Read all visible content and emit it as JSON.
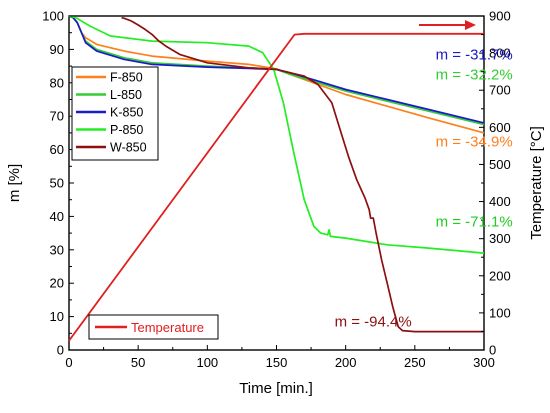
{
  "chart_data": {
    "type": "line",
    "xlabel": "Time [min.]",
    "ylabel": "m [%]",
    "y2label": "Temperature [°C]",
    "xlim": [
      0,
      300
    ],
    "ylim": [
      0,
      100
    ],
    "y2lim": [
      0,
      900
    ],
    "xticks": [
      0,
      50,
      100,
      150,
      200,
      250,
      300
    ],
    "yticks": [
      0,
      10,
      20,
      30,
      40,
      50,
      60,
      70,
      80,
      90,
      100
    ],
    "y2ticks": [
      0,
      100,
      200,
      300,
      400,
      500,
      600,
      700,
      800,
      900
    ],
    "grid": false,
    "legend_position": "upper-left",
    "series": [
      {
        "name": "F-850",
        "color": "#ff7f1e",
        "axis": "left",
        "points": [
          [
            0,
            100
          ],
          [
            3,
            99.5
          ],
          [
            6,
            98
          ],
          [
            9,
            95
          ],
          [
            12,
            93.5
          ],
          [
            20,
            91.5
          ],
          [
            40,
            89.5
          ],
          [
            60,
            88
          ],
          [
            100,
            86.5
          ],
          [
            130,
            85.5
          ],
          [
            150,
            84.2
          ],
          [
            160,
            82.5
          ],
          [
            180,
            79.5
          ],
          [
            200,
            76.5
          ],
          [
            230,
            73
          ],
          [
            260,
            69.5
          ],
          [
            300,
            65
          ]
        ]
      },
      {
        "name": "L-850",
        "color": "#33cc33",
        "axis": "left",
        "points": [
          [
            0,
            100
          ],
          [
            3,
            99.5
          ],
          [
            6,
            98
          ],
          [
            9,
            95
          ],
          [
            12,
            92.5
          ],
          [
            20,
            90
          ],
          [
            40,
            87.5
          ],
          [
            60,
            86
          ],
          [
            100,
            85
          ],
          [
            130,
            84.5
          ],
          [
            150,
            84
          ],
          [
            160,
            82.5
          ],
          [
            180,
            80
          ],
          [
            200,
            77.5
          ],
          [
            230,
            74.5
          ],
          [
            260,
            71.5
          ],
          [
            300,
            67.5
          ]
        ]
      },
      {
        "name": "K-850",
        "color": "#1a1acc",
        "axis": "left",
        "points": [
          [
            0,
            100
          ],
          [
            3,
            99.5
          ],
          [
            6,
            98
          ],
          [
            9,
            95
          ],
          [
            12,
            92
          ],
          [
            20,
            89.5
          ],
          [
            40,
            87
          ],
          [
            60,
            85.5
          ],
          [
            100,
            84.7
          ],
          [
            130,
            84.3
          ],
          [
            150,
            84
          ],
          [
            160,
            83
          ],
          [
            180,
            80.5
          ],
          [
            200,
            78
          ],
          [
            230,
            75
          ],
          [
            260,
            72
          ],
          [
            300,
            68
          ]
        ]
      },
      {
        "name": "P-850",
        "color": "#22ee22",
        "axis": "left",
        "points": [
          [
            0,
            100
          ],
          [
            5,
            99.5
          ],
          [
            15,
            97
          ],
          [
            30,
            94
          ],
          [
            60,
            92.5
          ],
          [
            100,
            92
          ],
          [
            130,
            91
          ],
          [
            140,
            89
          ],
          [
            148,
            84
          ],
          [
            155,
            74
          ],
          [
            162,
            60
          ],
          [
            170,
            45
          ],
          [
            177,
            37
          ],
          [
            182,
            35
          ],
          [
            187,
            34.5
          ],
          [
            188,
            36
          ],
          [
            189,
            34
          ],
          [
            200,
            33.5
          ],
          [
            230,
            31.5
          ],
          [
            260,
            30.5
          ],
          [
            300,
            29
          ]
        ]
      },
      {
        "name": "W-850",
        "color": "#8b1010",
        "axis": "left",
        "points": [
          [
            38,
            99.5
          ],
          [
            40,
            99.3
          ],
          [
            45,
            98.5
          ],
          [
            50,
            97.3
          ],
          [
            55,
            96
          ],
          [
            60,
            94.5
          ],
          [
            65,
            92.5
          ],
          [
            70,
            91
          ],
          [
            80,
            88.5
          ],
          [
            100,
            86
          ],
          [
            130,
            84.5
          ],
          [
            150,
            84
          ],
          [
            160,
            83
          ],
          [
            170,
            82
          ],
          [
            180,
            79.5
          ],
          [
            190,
            74
          ],
          [
            196,
            66
          ],
          [
            202,
            58
          ],
          [
            208,
            51
          ],
          [
            214,
            45.5
          ],
          [
            217,
            42
          ],
          [
            218,
            39.5
          ],
          [
            220,
            39.5
          ],
          [
            222,
            35
          ],
          [
            226,
            27
          ],
          [
            230,
            20
          ],
          [
            234,
            13
          ],
          [
            238,
            7
          ],
          [
            241,
            5.8
          ],
          [
            250,
            5.5
          ],
          [
            300,
            5.5
          ]
        ]
      },
      {
        "name": "Temperature",
        "color": "#e02020",
        "axis": "right",
        "points": [
          [
            0,
            25
          ],
          [
            163,
            850
          ],
          [
            170,
            852
          ],
          [
            300,
            852
          ]
        ]
      }
    ],
    "annotations": [
      {
        "text": "m = -31.7%",
        "color": "#1a1acc",
        "x": 265,
        "y": 87
      },
      {
        "text": "m = -32.2%",
        "color": "#33cc33",
        "x": 265,
        "y": 81
      },
      {
        "text": "m = -34.9%",
        "color": "#ff7f1e",
        "x": 265,
        "y": 61
      },
      {
        "text": "m = -71.1%",
        "color": "#22cc22",
        "x": 265,
        "y": 37
      },
      {
        "text": "m = -94.4%",
        "color": "#8b1010",
        "x": 192,
        "y": 7
      }
    ]
  }
}
